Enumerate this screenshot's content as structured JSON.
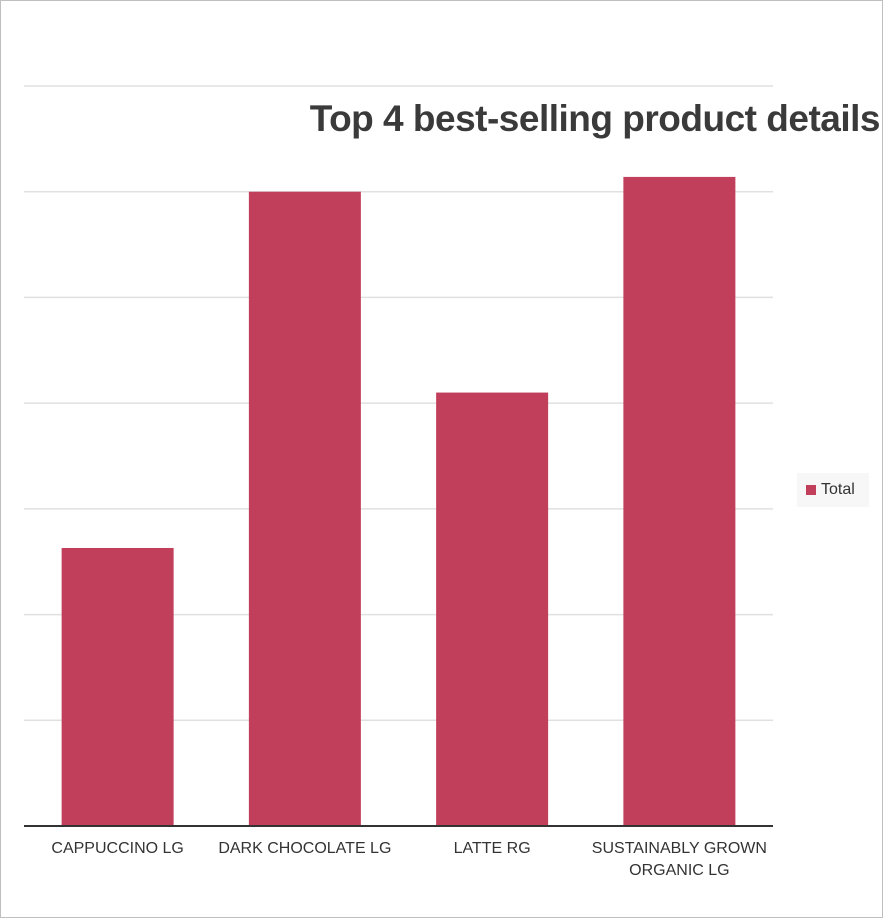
{
  "chart_data": {
    "type": "bar",
    "title": "Top 4 best-selling product details",
    "categories": [
      "CAPPUCCINO LG",
      "DARK CHOCOLATE LG",
      "LATTE RG",
      "SUSTAINABLY GROWN ORGANIC LG"
    ],
    "series": [
      {
        "name": "Total",
        "values": [
          2.63,
          6.0,
          4.1,
          6.14
        ],
        "color": "#c23f5c"
      }
    ],
    "ylim": [
      0,
      7
    ],
    "grid": true,
    "legend": "right",
    "xlabel": "",
    "ylabel": ""
  }
}
